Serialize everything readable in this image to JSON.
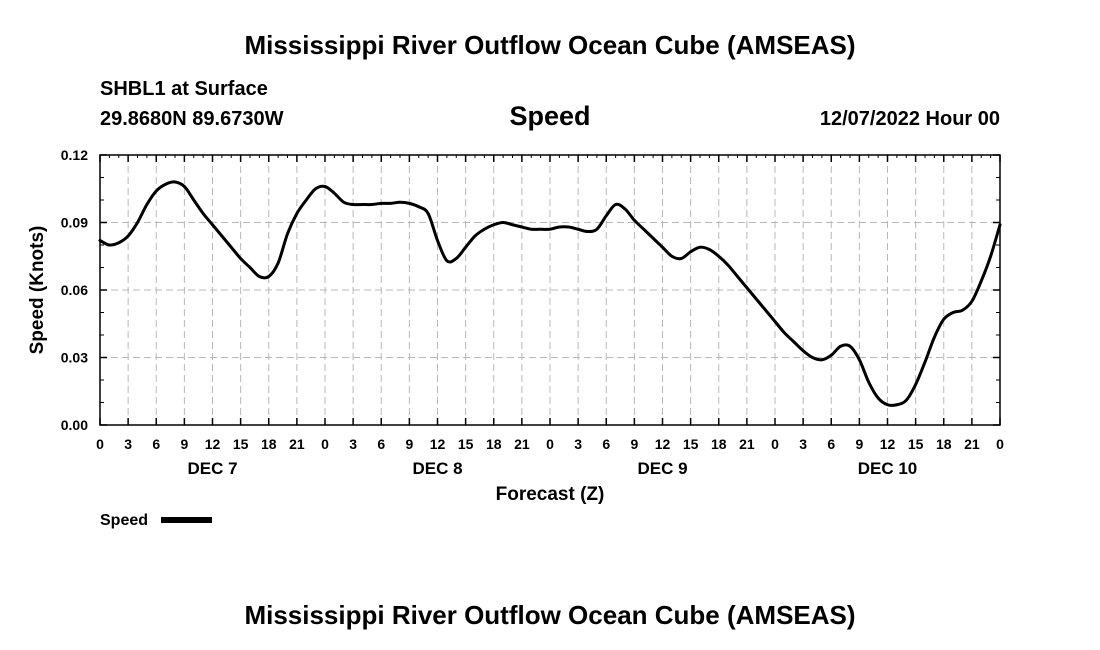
{
  "chart_data": {
    "type": "line",
    "title": "Mississippi River Outflow Ocean Cube (AMSEAS)",
    "footer_title": "Mississippi River Outflow Ocean Cube (AMSEAS)",
    "station": "SHBL1 at Surface",
    "coordinates": "29.8680N  89.6730W",
    "subtitle": "Speed",
    "datetime": "12/07/2022 Hour 00",
    "xlabel": "Forecast (Z)",
    "ylabel": "Speed (Knots)",
    "ylim": [
      0,
      0.12
    ],
    "xlim": [
      0,
      96
    ],
    "y_ticks": [
      "0.00",
      "0.03",
      "0.06",
      "0.09",
      "0.12"
    ],
    "x_tick_labels": [
      "0",
      "3",
      "6",
      "9",
      "12",
      "15",
      "18",
      "21",
      "0",
      "3",
      "6",
      "9",
      "12",
      "15",
      "18",
      "21",
      "0",
      "3",
      "6",
      "9",
      "12",
      "15",
      "18",
      "21",
      "0",
      "3",
      "6",
      "9",
      "12",
      "15",
      "18",
      "21",
      "0"
    ],
    "day_labels": [
      {
        "label": "DEC 7",
        "hour": 12
      },
      {
        "label": "DEC 8",
        "hour": 36
      },
      {
        "label": "DEC 9",
        "hour": 60
      },
      {
        "label": "DEC 10",
        "hour": 84
      }
    ],
    "legend": "Speed",
    "series": [
      {
        "name": "Speed",
        "color": "#000000",
        "x": [
          0,
          1,
          2,
          3,
          4,
          5,
          6,
          7,
          8,
          9,
          10,
          11,
          12,
          13,
          14,
          15,
          16,
          17,
          18,
          19,
          20,
          21,
          22,
          23,
          24,
          25,
          26,
          27,
          28,
          29,
          30,
          31,
          32,
          33,
          34,
          35,
          36,
          37,
          38,
          39,
          40,
          41,
          42,
          43,
          44,
          45,
          46,
          47,
          48,
          49,
          50,
          51,
          52,
          53,
          54,
          55,
          56,
          57,
          58,
          59,
          60,
          61,
          62,
          63,
          64,
          65,
          66,
          67,
          68,
          69,
          70,
          71,
          72,
          73,
          74,
          75,
          76,
          77,
          78,
          79,
          80,
          81,
          82,
          83,
          84,
          85,
          86,
          87,
          88,
          89,
          90,
          91,
          92,
          93,
          94,
          95,
          96
        ],
        "values": [
          0.082,
          0.08,
          0.081,
          0.084,
          0.09,
          0.098,
          0.104,
          0.107,
          0.108,
          0.106,
          0.1,
          0.094,
          0.089,
          0.084,
          0.079,
          0.074,
          0.07,
          0.066,
          0.066,
          0.072,
          0.085,
          0.094,
          0.1,
          0.105,
          0.106,
          0.103,
          0.099,
          0.098,
          0.098,
          0.098,
          0.0985,
          0.0985,
          0.099,
          0.0985,
          0.097,
          0.094,
          0.082,
          0.073,
          0.074,
          0.079,
          0.084,
          0.087,
          0.089,
          0.09,
          0.089,
          0.088,
          0.087,
          0.087,
          0.087,
          0.088,
          0.088,
          0.087,
          0.086,
          0.087,
          0.093,
          0.098,
          0.096,
          0.091,
          0.087,
          0.083,
          0.079,
          0.075,
          0.074,
          0.077,
          0.079,
          0.078,
          0.075,
          0.071,
          0.066,
          0.061,
          0.056,
          0.051,
          0.046,
          0.041,
          0.037,
          0.033,
          0.03,
          0.029,
          0.031,
          0.035,
          0.035,
          0.029,
          0.019,
          0.012,
          0.009,
          0.009,
          0.011,
          0.018,
          0.028,
          0.039,
          0.047,
          0.05,
          0.051,
          0.055,
          0.064,
          0.075,
          0.089
        ]
      }
    ]
  }
}
